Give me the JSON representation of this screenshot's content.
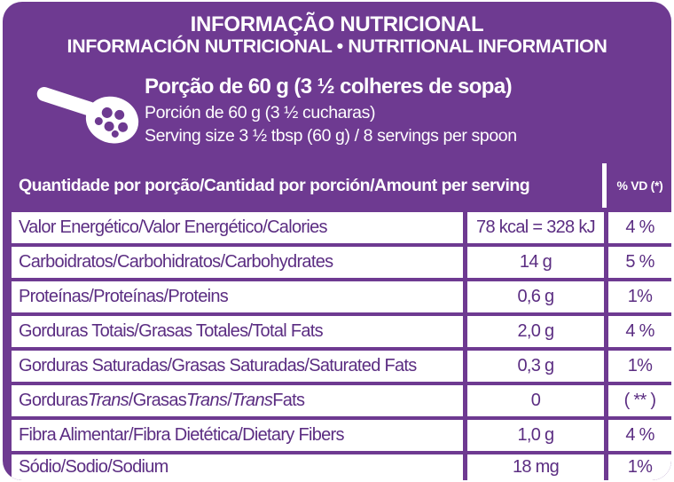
{
  "header": {
    "title_pt": "INFORMAÇÃO NUTRICIONAL",
    "title_es_en": "INFORMACIÓN NUTRICIONAL • NUTRITIONAL INFORMATION",
    "serving_pt": "Porção de 60 g (3 ½ colheres de sopa)",
    "serving_es": "Porción de 60 g (3 ½ cucharas)",
    "serving_en": "Serving size 3 ½ tbsp (60 g) / 8 servings per spoon"
  },
  "table": {
    "header_quantity": "Quantidade por porção/Cantidad por porción/Amount per serving",
    "header_dv": "% VD (*)",
    "rows": [
      {
        "name": "Valor Energético/Valor Energético/Calories",
        "amount": "78 kcal = 328 kJ",
        "dv": "4 %"
      },
      {
        "name": "Carboidratos/Carbohidratos/Carbohydrates",
        "amount": "14 g",
        "dv": "5 %"
      },
      {
        "name": "Proteínas/Proteínas/Proteins",
        "amount": "0,6 g",
        "dv": "1%"
      },
      {
        "name": "Gorduras Totais/Grasas Totales/Total Fats",
        "amount": "2,0 g",
        "dv": "4 %"
      },
      {
        "name": "Gorduras Saturadas/Grasas Saturadas/Saturated Fats",
        "amount": "0,3 g",
        "dv": "1%"
      },
      {
        "name_parts": [
          "Gorduras ",
          "Trans",
          "/Grasas ",
          "Trans",
          "/",
          "Trans",
          " Fats"
        ],
        "amount": "0",
        "dv": "( ** )"
      },
      {
        "name": "Fibra Alimentar/Fibra Dietética/Dietary Fibers",
        "amount": "1,0 g",
        "dv": "4 %"
      },
      {
        "name": "Sódio/Sodio/Sodium",
        "amount": "18 mg",
        "dv": "1%"
      }
    ]
  },
  "colors": {
    "panel": "#6e3a91",
    "text_dark": "#5b2d82",
    "text_light": "#ffffff"
  },
  "icons": [
    "spoon-icon"
  ]
}
